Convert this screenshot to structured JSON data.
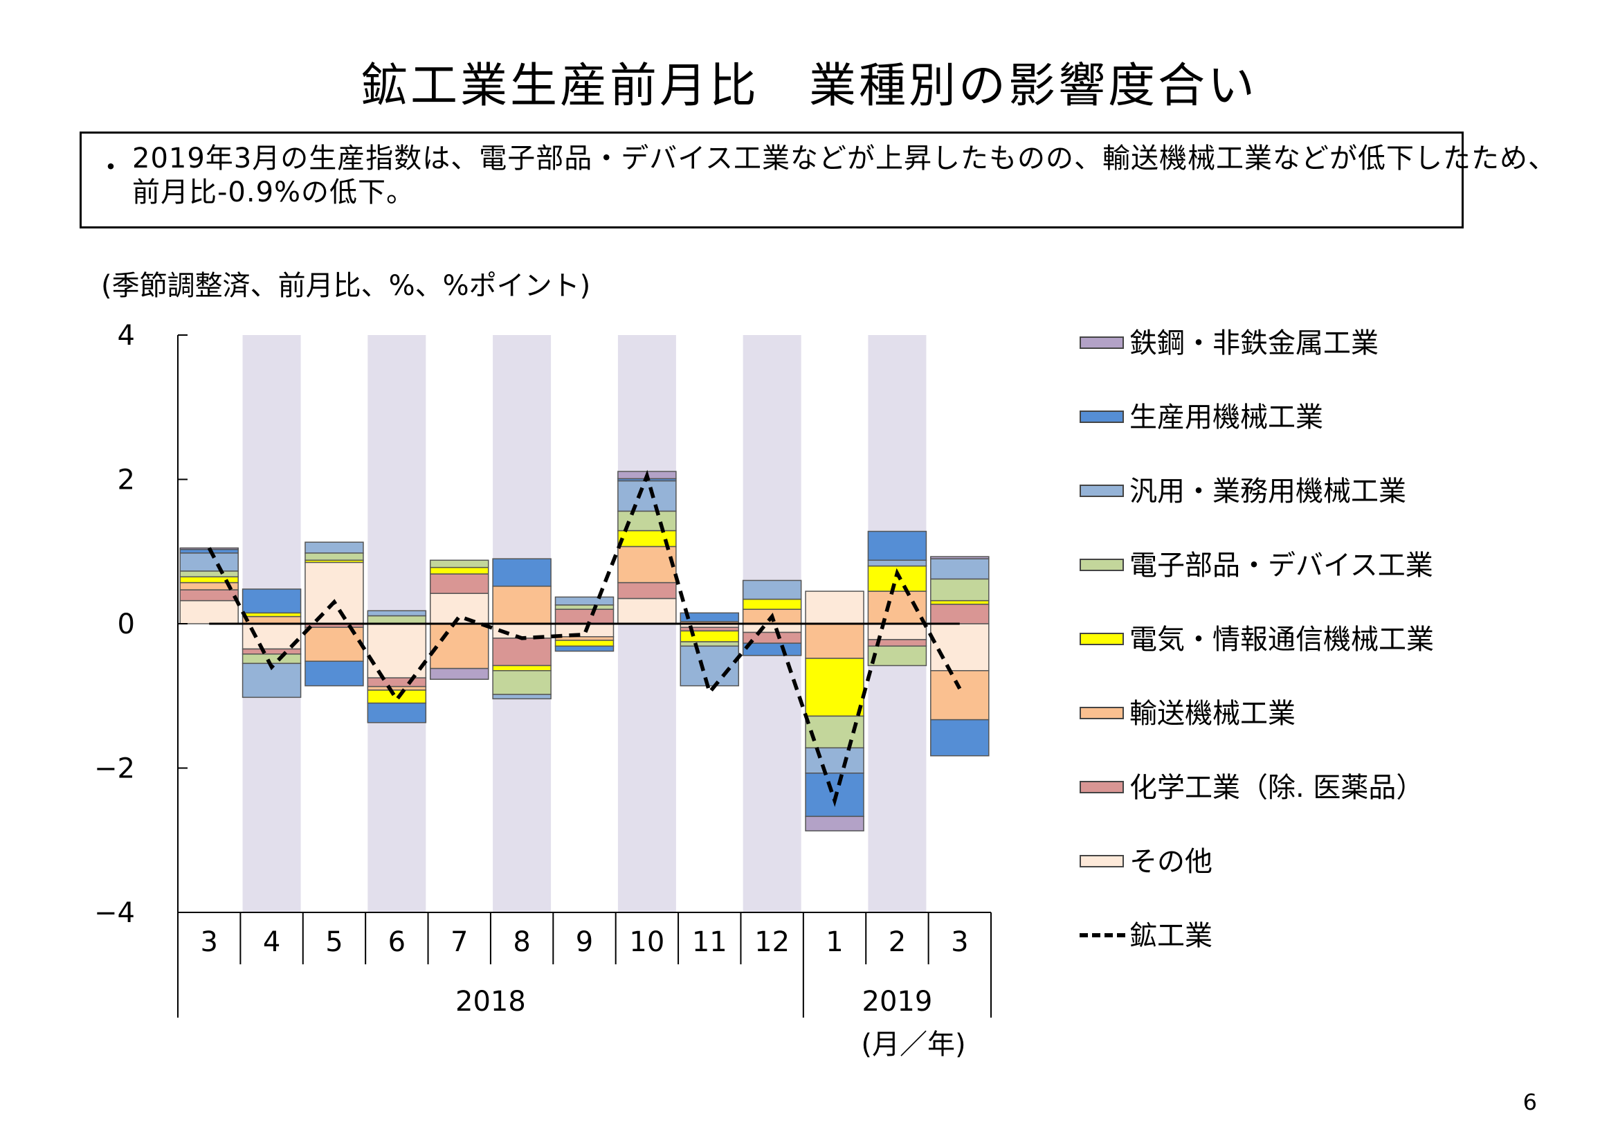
{
  "title": "鉱工業生産前月比　業種別の影響度合い",
  "note": {
    "bullet": "・",
    "text": "2019年3月の生産指数は、電子部品・デバイス工業などが上昇したものの、輸送機械工業などが低下したため、前月比-0.9%の低下。"
  },
  "unit_label": "(季節調整済、前月比、%、%ポイント)",
  "page_number": "6",
  "chart_data": {
    "type": "bar",
    "stacked": true,
    "categories": [
      "3",
      "4",
      "5",
      "6",
      "7",
      "8",
      "9",
      "10",
      "11",
      "12",
      "1",
      "2",
      "3"
    ],
    "year_groups": [
      {
        "label": "2018",
        "start": 0,
        "end": 9
      },
      {
        "label": "2019",
        "start": 10,
        "end": 12
      }
    ],
    "xlabel": "(月／年)",
    "ylim": [
      -4,
      4
    ],
    "yticks": [
      4,
      2,
      0,
      -2,
      -4
    ],
    "ytick_labels": [
      "4",
      "2",
      "0",
      "−2",
      "−4"
    ],
    "shaded_categories": [
      1,
      3,
      5,
      7,
      9,
      11
    ],
    "shade_color": "#e2dfec",
    "series": [
      {
        "name": "その他",
        "color": "#fde9d9",
        "values": [
          0.32,
          -0.35,
          0.85,
          -0.75,
          0.42,
          -0.2,
          -0.18,
          0.35,
          -0.05,
          -0.12,
          0.45,
          -0.22,
          -0.65
        ]
      },
      {
        "name": "化学工業（除. 医薬品）",
        "color": "#d99694",
        "values": [
          0.15,
          -0.07,
          -0.05,
          -0.12,
          0.27,
          -0.38,
          0.2,
          0.22,
          -0.05,
          -0.15,
          0.0,
          -0.09,
          0.27
        ]
      },
      {
        "name": "輸送機械工業",
        "color": "#fac090",
        "values": [
          0.1,
          0.1,
          -0.47,
          -0.05,
          -0.62,
          0.52,
          -0.05,
          0.5,
          0.03,
          0.2,
          -0.48,
          0.45,
          -0.68
        ]
      },
      {
        "name": "電気・情報通信機械工業",
        "color": "#ffff00",
        "values": [
          0.08,
          0.05,
          0.03,
          -0.18,
          0.09,
          -0.07,
          -0.08,
          0.22,
          -0.15,
          0.14,
          -0.8,
          0.35,
          0.05
        ]
      },
      {
        "name": "電子部品・デバイス工業",
        "color": "#c3d69b",
        "values": [
          0.08,
          -0.13,
          0.1,
          0.11,
          0.1,
          -0.33,
          0.06,
          0.27,
          -0.06,
          0.0,
          -0.44,
          -0.27,
          0.3
        ]
      },
      {
        "name": "汎用・業務用機械工業",
        "color": "#95b3d7",
        "values": [
          0.25,
          -0.47,
          0.15,
          0.07,
          0.0,
          -0.06,
          0.11,
          0.42,
          -0.55,
          0.26,
          -0.35,
          0.08,
          0.28
        ]
      },
      {
        "name": "生産用機械工業",
        "color": "#558ed5",
        "values": [
          0.05,
          0.33,
          -0.34,
          -0.27,
          0.0,
          0.38,
          -0.07,
          0.03,
          0.12,
          -0.17,
          -0.6,
          0.4,
          -0.5
        ]
      },
      {
        "name": "鉄鋼・非鉄金属工業",
        "color": "#b3a2c7",
        "values": [
          0.02,
          0.0,
          0.0,
          0.0,
          -0.15,
          0.0,
          0.0,
          0.1,
          0.0,
          0.0,
          -0.2,
          0.0,
          0.03
        ]
      }
    ],
    "line_series": {
      "name": "鉱工業",
      "color": "#000000",
      "values": [
        1.05,
        -0.6,
        0.3,
        -1.05,
        0.1,
        -0.2,
        -0.15,
        2.05,
        -0.95,
        0.1,
        -2.45,
        0.7,
        -0.9
      ]
    },
    "legend": {
      "placement": "right",
      "order": [
        "鉄鋼・非鉄金属工業",
        "生産用機械工業",
        "汎用・業務用機械工業",
        "電子部品・デバイス工業",
        "電気・情報通信機械工業",
        "輸送機械工業",
        "化学工業（除. 医薬品）",
        "その他",
        "鉱工業"
      ]
    }
  }
}
